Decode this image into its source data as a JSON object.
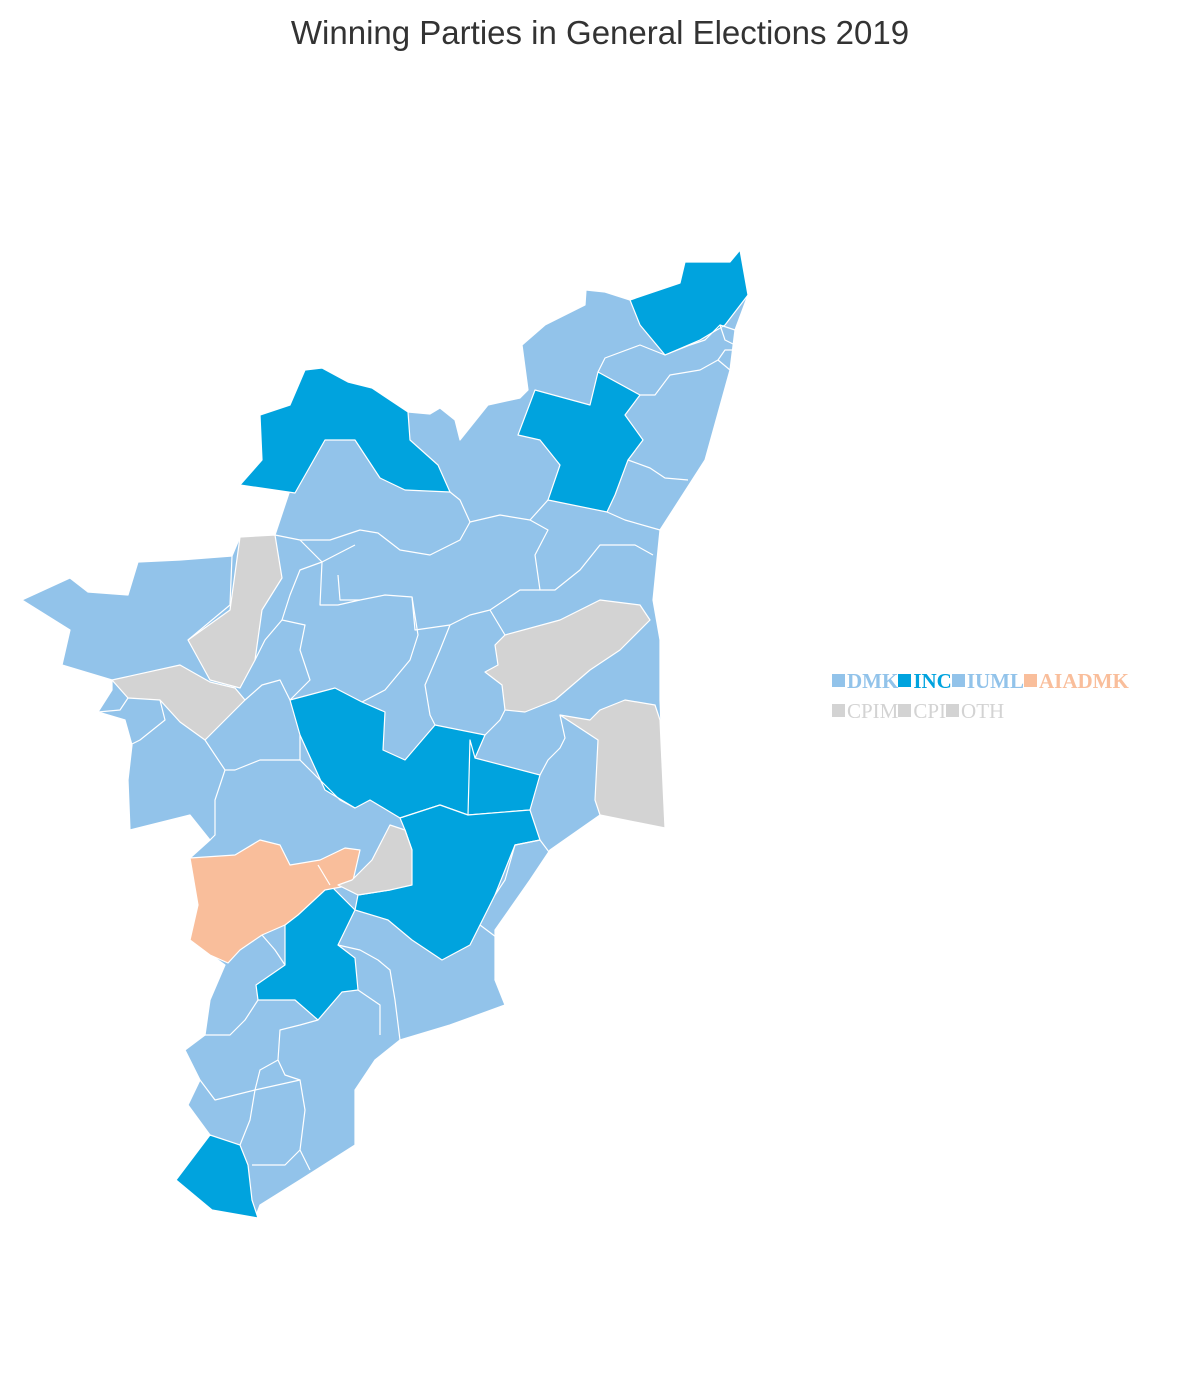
{
  "title": "Winning Parties in General Elections 2019",
  "colors": {
    "DMK": "#92c3ea",
    "INC": "#00a3de",
    "IUML": "#92c3ea",
    "AIADMK": "#f9be9b",
    "CPIM": "#d3d3d3",
    "CPI": "#d3d3d3",
    "OTH": "#d3d3d3"
  },
  "legend": {
    "row1": [
      {
        "party": "DMK",
        "label": "DMK",
        "color": "#92c3ea"
      },
      {
        "party": "INC",
        "label": "INC",
        "color": "#00a3de"
      },
      {
        "party": "IUML",
        "label": "IUML",
        "color": "#92c3ea"
      },
      {
        "party": "AIADMK",
        "label": "AIADMK",
        "color": "#f9be9b"
      }
    ],
    "row2": [
      {
        "party": "CPIM",
        "label": "CPIM",
        "color": "#d3d3d3"
      },
      {
        "party": "CPI",
        "label": "CPI",
        "color": "#d3d3d3"
      },
      {
        "party": "OTH",
        "label": "OTH",
        "color": "#d3d3d3"
      }
    ]
  }
}
